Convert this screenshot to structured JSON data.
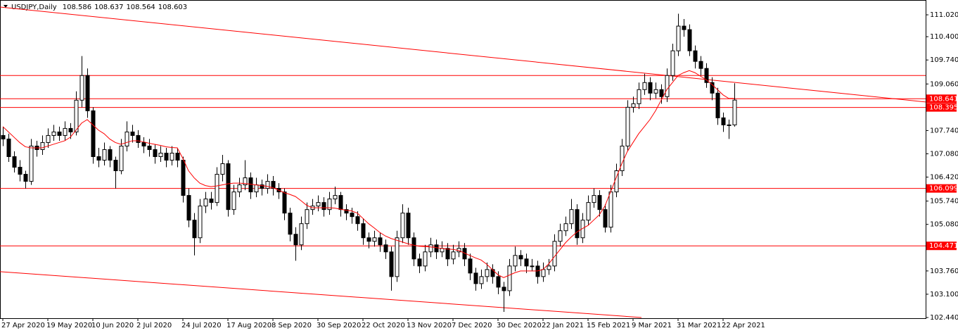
{
  "chart_data": {
    "type": "candlestick",
    "symbol": "USDJPY,Daily",
    "ohlc": [
      108.586,
      108.637,
      108.564,
      108.603
    ],
    "categories": [
      "27 Apr 2020",
      null,
      null,
      null,
      null,
      null,
      null,
      null,
      "19 May 2020",
      null,
      null,
      null,
      null,
      null,
      null,
      null,
      "10 Jun 2020",
      null,
      null,
      null,
      null,
      null,
      null,
      null,
      "2 Jul 2020",
      null,
      null,
      null,
      null,
      null,
      null,
      null,
      "24 Jul 2020",
      null,
      null,
      null,
      null,
      null,
      null,
      null,
      "17 Aug 2020",
      null,
      null,
      null,
      null,
      null,
      null,
      null,
      "8 Sep 2020",
      null,
      null,
      null,
      null,
      null,
      null,
      null,
      "30 Sep 2020",
      null,
      null,
      null,
      null,
      null,
      null,
      null,
      "22 Oct 2020",
      null,
      null,
      null,
      null,
      null,
      null,
      null,
      "13 Nov 2020",
      null,
      null,
      null,
      null,
      null,
      null,
      null,
      "7 Dec 2020",
      null,
      null,
      null,
      null,
      null,
      null,
      null,
      "30 Dec 2020",
      null,
      null,
      null,
      null,
      null,
      null,
      null,
      "22 Jan 2021",
      null,
      null,
      null,
      null,
      null,
      null,
      null,
      "15 Feb 2021",
      null,
      null,
      null,
      null,
      null,
      null,
      null,
      "9 Mar 2021",
      null,
      null,
      null,
      null,
      null,
      null,
      null,
      "31 Mar 2021",
      null,
      null,
      null,
      null,
      null,
      null,
      null,
      "22 Apr 2021",
      null,
      null
    ],
    "candles": [
      [
        107.6,
        107.85,
        107.3,
        107.5
      ],
      [
        107.5,
        107.65,
        106.85,
        107.0
      ],
      [
        107.0,
        107.15,
        106.55,
        106.7
      ],
      [
        106.7,
        106.9,
        106.3,
        106.5
      ],
      [
        106.5,
        106.6,
        106.1,
        106.3
      ],
      [
        106.3,
        107.5,
        106.2,
        107.3
      ],
      [
        107.3,
        107.45,
        107.0,
        107.2
      ],
      [
        107.2,
        107.6,
        107.05,
        107.4
      ],
      [
        107.4,
        107.8,
        107.25,
        107.6
      ],
      [
        107.6,
        107.9,
        107.45,
        107.7
      ],
      [
        107.7,
        107.85,
        107.45,
        107.6
      ],
      [
        107.6,
        108.0,
        107.45,
        107.8
      ],
      [
        107.8,
        107.95,
        107.5,
        107.7
      ],
      [
        107.7,
        108.85,
        107.6,
        108.6
      ],
      [
        108.6,
        109.85,
        108.4,
        109.3
      ],
      [
        109.3,
        109.5,
        108.1,
        108.3
      ],
      [
        108.3,
        108.4,
        106.8,
        107.0
      ],
      [
        107.0,
        107.25,
        106.7,
        106.9
      ],
      [
        106.9,
        107.4,
        106.75,
        107.2
      ],
      [
        107.2,
        107.3,
        106.7,
        106.9
      ],
      [
        106.9,
        107.0,
        106.1,
        106.6
      ],
      [
        106.6,
        107.5,
        106.5,
        107.3
      ],
      [
        107.3,
        108.0,
        107.15,
        107.7
      ],
      [
        107.7,
        107.9,
        107.4,
        107.6
      ],
      [
        107.6,
        107.75,
        107.25,
        107.4
      ],
      [
        107.4,
        107.55,
        107.1,
        107.3
      ],
      [
        107.3,
        107.5,
        107.0,
        107.2
      ],
      [
        107.2,
        107.35,
        106.8,
        107.0
      ],
      [
        107.0,
        107.3,
        106.85,
        107.1
      ],
      [
        107.1,
        107.25,
        106.7,
        106.9
      ],
      [
        106.9,
        107.3,
        106.75,
        107.1
      ],
      [
        107.1,
        107.25,
        106.7,
        106.9
      ],
      [
        106.9,
        107.0,
        105.7,
        105.9
      ],
      [
        105.9,
        106.1,
        105.0,
        105.2
      ],
      [
        105.2,
        105.4,
        104.2,
        104.7
      ],
      [
        104.7,
        105.8,
        104.55,
        105.6
      ],
      [
        105.6,
        106.0,
        105.4,
        105.8
      ],
      [
        105.8,
        106.0,
        105.5,
        105.7
      ],
      [
        105.7,
        106.7,
        105.6,
        106.5
      ],
      [
        106.5,
        107.05,
        106.3,
        106.8
      ],
      [
        106.8,
        106.9,
        105.3,
        105.5
      ],
      [
        105.5,
        106.2,
        105.35,
        106.0
      ],
      [
        106.0,
        106.4,
        105.85,
        106.2
      ],
      [
        106.2,
        106.9,
        106.05,
        106.4
      ],
      [
        106.4,
        106.55,
        105.8,
        106.0
      ],
      [
        106.0,
        106.4,
        105.85,
        106.2
      ],
      [
        106.2,
        106.35,
        105.9,
        106.1
      ],
      [
        106.1,
        106.5,
        105.95,
        106.3
      ],
      [
        106.3,
        106.45,
        105.9,
        106.1
      ],
      [
        106.1,
        106.25,
        105.8,
        106.0
      ],
      [
        106.0,
        106.1,
        105.2,
        105.4
      ],
      [
        105.4,
        105.55,
        104.6,
        104.8
      ],
      [
        104.8,
        105.0,
        104.05,
        104.5
      ],
      [
        104.5,
        105.3,
        104.35,
        105.1
      ],
      [
        105.1,
        105.7,
        104.95,
        105.5
      ],
      [
        105.5,
        105.8,
        105.35,
        105.6
      ],
      [
        105.6,
        105.9,
        105.45,
        105.7
      ],
      [
        105.7,
        105.85,
        105.3,
        105.5
      ],
      [
        105.5,
        106.0,
        105.35,
        105.8
      ],
      [
        105.8,
        106.15,
        105.65,
        105.9
      ],
      [
        105.9,
        106.0,
        105.3,
        105.5
      ],
      [
        105.5,
        105.65,
        105.2,
        105.4
      ],
      [
        105.4,
        105.55,
        105.1,
        105.3
      ],
      [
        105.3,
        105.45,
        104.9,
        105.1
      ],
      [
        105.1,
        105.25,
        104.5,
        104.7
      ],
      [
        104.7,
        104.85,
        104.4,
        104.6
      ],
      [
        104.6,
        104.9,
        104.45,
        104.7
      ],
      [
        104.7,
        104.85,
        104.3,
        104.5
      ],
      [
        104.5,
        104.65,
        104.1,
        104.3
      ],
      [
        104.3,
        104.45,
        103.2,
        103.6
      ],
      [
        103.6,
        104.9,
        103.45,
        104.7
      ],
      [
        104.7,
        105.65,
        104.55,
        105.4
      ],
      [
        105.4,
        105.55,
        104.5,
        104.7
      ],
      [
        104.7,
        104.85,
        103.9,
        104.1
      ],
      [
        104.1,
        104.25,
        103.7,
        103.9
      ],
      [
        103.9,
        104.5,
        103.75,
        104.3
      ],
      [
        104.3,
        104.7,
        104.15,
        104.5
      ],
      [
        104.5,
        104.65,
        104.1,
        104.3
      ],
      [
        104.3,
        104.6,
        104.15,
        104.4
      ],
      [
        104.4,
        104.55,
        103.9,
        104.1
      ],
      [
        104.1,
        104.5,
        103.95,
        104.3
      ],
      [
        104.3,
        104.6,
        104.15,
        104.4
      ],
      [
        104.4,
        104.55,
        103.9,
        104.1
      ],
      [
        104.1,
        104.25,
        103.5,
        103.7
      ],
      [
        103.7,
        103.85,
        103.2,
        103.4
      ],
      [
        103.4,
        103.8,
        103.25,
        103.6
      ],
      [
        103.6,
        104.0,
        103.45,
        103.8
      ],
      [
        103.8,
        103.95,
        103.4,
        103.6
      ],
      [
        103.6,
        103.75,
        103.1,
        103.3
      ],
      [
        103.3,
        103.45,
        102.6,
        103.2
      ],
      [
        103.2,
        104.1,
        103.05,
        103.9
      ],
      [
        103.9,
        104.45,
        103.75,
        104.2
      ],
      [
        104.2,
        104.35,
        103.9,
        104.1
      ],
      [
        104.1,
        104.25,
        103.7,
        103.9
      ],
      [
        103.9,
        104.1,
        103.75,
        103.9
      ],
      [
        103.9,
        104.05,
        103.4,
        103.6
      ],
      [
        103.6,
        104.0,
        103.45,
        103.8
      ],
      [
        103.8,
        104.1,
        103.65,
        103.9
      ],
      [
        103.9,
        104.8,
        103.75,
        104.6
      ],
      [
        104.6,
        105.1,
        104.45,
        104.9
      ],
      [
        104.9,
        105.3,
        104.75,
        105.1
      ],
      [
        105.1,
        105.8,
        104.95,
        105.5
      ],
      [
        105.5,
        105.65,
        104.5,
        104.7
      ],
      [
        104.7,
        105.4,
        104.55,
        105.2
      ],
      [
        105.2,
        105.9,
        105.05,
        105.7
      ],
      [
        105.7,
        106.1,
        105.55,
        105.9
      ],
      [
        105.9,
        106.05,
        105.3,
        105.5
      ],
      [
        105.5,
        105.65,
        104.85,
        105.0
      ],
      [
        105.0,
        106.2,
        104.85,
        106.0
      ],
      [
        106.0,
        106.8,
        105.85,
        106.6
      ],
      [
        106.6,
        107.5,
        106.45,
        107.3
      ],
      [
        107.3,
        108.6,
        107.15,
        108.4
      ],
      [
        108.4,
        108.7,
        108.25,
        108.5
      ],
      [
        108.5,
        109.1,
        108.35,
        108.9
      ],
      [
        108.9,
        109.35,
        108.75,
        109.1
      ],
      [
        109.1,
        109.25,
        108.6,
        108.8
      ],
      [
        108.8,
        109.1,
        108.65,
        108.9
      ],
      [
        108.9,
        109.05,
        108.5,
        108.7
      ],
      [
        108.7,
        109.5,
        108.55,
        109.3
      ],
      [
        109.3,
        110.2,
        109.15,
        110.0
      ],
      [
        110.0,
        111.05,
        109.85,
        110.7
      ],
      [
        110.7,
        110.9,
        110.4,
        110.6
      ],
      [
        110.6,
        110.75,
        109.85,
        110.0
      ],
      [
        110.0,
        110.15,
        109.5,
        109.7
      ],
      [
        109.7,
        109.85,
        109.3,
        109.5
      ],
      [
        109.5,
        109.65,
        108.95,
        109.1
      ],
      [
        109.1,
        109.25,
        108.6,
        108.8
      ],
      [
        108.8,
        108.95,
        107.9,
        108.1
      ],
      [
        108.1,
        108.25,
        107.7,
        107.9
      ],
      [
        107.9,
        108.05,
        107.5,
        107.9
      ],
      [
        107.9,
        109.08,
        107.85,
        108.603
      ]
    ],
    "ma": {
      "color": "#ff0000",
      "values": [
        107.85,
        107.7,
        107.55,
        107.4,
        107.28,
        107.25,
        107.25,
        107.25,
        107.3,
        107.35,
        107.4,
        107.45,
        107.55,
        107.75,
        107.95,
        108.05,
        107.9,
        107.75,
        107.65,
        107.5,
        107.4,
        107.35,
        107.4,
        107.45,
        107.45,
        107.42,
        107.38,
        107.35,
        107.32,
        107.28,
        107.26,
        107.25,
        106.95,
        106.6,
        106.4,
        106.25,
        106.18,
        106.15,
        106.17,
        106.2,
        106.23,
        106.25,
        106.25,
        106.24,
        106.22,
        106.2,
        106.18,
        106.16,
        106.12,
        106.05,
        105.98,
        105.93,
        105.87,
        105.75,
        105.62,
        105.55,
        105.55,
        105.55,
        105.55,
        105.54,
        105.51,
        105.48,
        105.46,
        105.4,
        105.25,
        105.1,
        104.98,
        104.85,
        104.75,
        104.68,
        104.63,
        104.58,
        104.53,
        104.49,
        104.46,
        104.45,
        104.44,
        104.42,
        104.4,
        104.38,
        104.37,
        104.34,
        104.27,
        104.2,
        104.13,
        104.07,
        103.95,
        103.8,
        103.65,
        103.57,
        103.64,
        103.71,
        103.76,
        103.76,
        103.76,
        103.76,
        103.8,
        103.96,
        104.16,
        104.36,
        104.56,
        104.72,
        104.86,
        104.96,
        105.05,
        105.2,
        105.35,
        105.6,
        106.0,
        106.4,
        106.8,
        107.15,
        107.4,
        107.65,
        107.85,
        108.05,
        108.3,
        108.6,
        108.9,
        109.1,
        109.3,
        109.38,
        109.44,
        109.38,
        109.28,
        109.18,
        109.05,
        108.9,
        108.75,
        108.65,
        108.65
      ]
    },
    "levels": [
      108.641,
      108.395,
      106.099,
      104.471
    ],
    "unlabeled_levels": [
      109.3
    ],
    "level_color": "#ff0000",
    "trendlines": [
      {
        "x": [
          -0.5,
          164
        ],
        "y": [
          111.24,
          108.55
        ]
      },
      {
        "x": [
          -0.5,
          113.5
        ],
        "y": [
          103.74,
          102.44
        ]
      }
    ],
    "ylim": [
      102.42,
      111.44
    ],
    "yticks": [
      {
        "value": 111.02,
        "label": "111.020"
      },
      {
        "value": 110.4,
        "label": "110.400"
      },
      {
        "value": 109.74,
        "label": "109.740"
      },
      {
        "value": 109.06,
        "label": "109.060"
      },
      {
        "value": 107.74,
        "label": "107.740"
      },
      {
        "value": 107.08,
        "label": "107.080"
      },
      {
        "value": 106.42,
        "label": "106.420"
      },
      {
        "value": 105.74,
        "label": "105.740"
      },
      {
        "value": 105.08,
        "label": "105.080"
      },
      {
        "value": 103.76,
        "label": "103.760"
      },
      {
        "value": 103.1,
        "label": "103.100"
      },
      {
        "value": 102.44,
        "label": "102.440"
      }
    ]
  }
}
